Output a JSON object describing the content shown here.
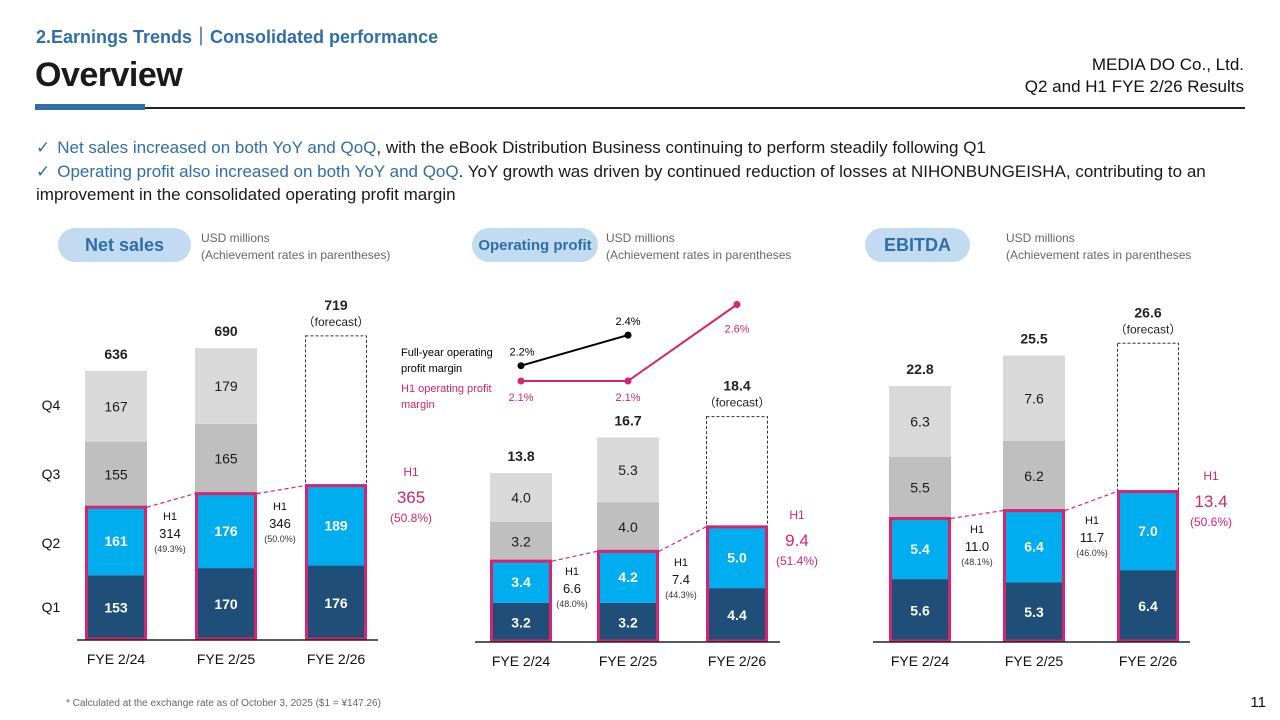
{
  "header": {
    "section": "2.Earnings Trends｜Consolidated performance",
    "title": "Overview",
    "company": "MEDIA DO Co., Ltd.",
    "report": "Q2 and H1 FYE 2/26 Results"
  },
  "bullets": [
    {
      "check": "✓",
      "highlight": "Net sales increased on both YoY and QoQ",
      "rest": ", with the eBook Distribution Business continuing to perform steadily following Q1"
    },
    {
      "check": "✓",
      "highlight": "Operating profit also increased on both YoY and QoQ",
      "rest": ". YoY growth was driven by continued reduction of losses at NIHONBUNGEISHA, contributing to an improvement in the consolidated operating profit margin"
    }
  ],
  "panels": {
    "net_sales": {
      "pill": "Net sales",
      "unit": "USD millions",
      "note": "(Achievement rates in parentheses)"
    },
    "operating_profit": {
      "pill": "Operating profit",
      "unit": "USD millions",
      "note": "(Achievement rates in parentheses"
    },
    "ebitda": {
      "pill": "EBITDA",
      "unit": "USD millions",
      "note": "(Achievement rates in parentheses"
    }
  },
  "colors": {
    "q1": "#1f4e79",
    "q2": "#00aeef",
    "q3": "#bfbfbf",
    "q4": "#d9d9d9",
    "h1_highlight": "#d6246e",
    "full_year_line": "#000000"
  },
  "footnote": "* Calculated at the exchange rate as of October 3, 2025 ($1 = ¥147.26)",
  "page_number": "11",
  "chart_data": [
    {
      "type": "bar",
      "stacked": true,
      "title": "Net sales",
      "unit": "USD millions",
      "categories": [
        "FYE 2/24",
        "FYE 2/25",
        "FYE 2/26"
      ],
      "quarter_labels": [
        "Q1",
        "Q2",
        "Q3",
        "Q4"
      ],
      "series": [
        {
          "name": "Q1",
          "values": [
            153,
            170,
            176
          ]
        },
        {
          "name": "Q2",
          "values": [
            161,
            176,
            189
          ]
        },
        {
          "name": "Q3",
          "values": [
            155,
            165,
            null
          ]
        },
        {
          "name": "Q4",
          "values": [
            167,
            179,
            null
          ]
        }
      ],
      "totals": [
        "636",
        "690",
        "719"
      ],
      "total_notes": [
        "",
        "",
        "（forecast）"
      ],
      "forecast": [
        false,
        false,
        true
      ],
      "h1": [
        {
          "label": "H1",
          "value": "314",
          "rate": "(49.3%)"
        },
        {
          "label": "H1",
          "value": "346",
          "rate": "(50.0%)"
        },
        {
          "label": "H1",
          "value": "365",
          "rate": "(50.8%)"
        }
      ],
      "ylim": [
        0,
        760
      ]
    },
    {
      "type": "bar",
      "stacked": true,
      "title": "Operating profit",
      "unit": "USD millions",
      "categories": [
        "FYE 2/24",
        "FYE 2/25",
        "FYE 2/26"
      ],
      "series": [
        {
          "name": "Q1",
          "values": [
            3.2,
            3.2,
            4.4
          ]
        },
        {
          "name": "Q2",
          "values": [
            3.4,
            4.2,
            5.0
          ]
        },
        {
          "name": "Q3",
          "values": [
            3.2,
            4.0,
            null
          ]
        },
        {
          "name": "Q4",
          "values": [
            4.0,
            5.3,
            null
          ]
        }
      ],
      "totals": [
        "13.8",
        "16.7",
        "18.4"
      ],
      "total_notes": [
        "",
        "",
        "（forecast）"
      ],
      "forecast": [
        false,
        false,
        true
      ],
      "h1": [
        {
          "label": "H1",
          "value": "6.6",
          "rate": "(48.0%)"
        },
        {
          "label": "H1",
          "value": "7.4",
          "rate": "(44.3%)"
        },
        {
          "label": "H1",
          "value": "9.4",
          "rate": "(51.4%)"
        }
      ],
      "margin_lines": [
        {
          "name": "Full-year operating profit margin",
          "name_lines": [
            "Full-year operating",
            "profit margin"
          ],
          "values": [
            2.2,
            2.4
          ],
          "labels": [
            "2.2%",
            "2.4%"
          ]
        },
        {
          "name": "H1 operating profit margin",
          "name_lines": [
            "H1 operating profit",
            "margin"
          ],
          "values": [
            2.1,
            2.1,
            2.6
          ],
          "labels": [
            "2.1%",
            "2.1%",
            "2.6%"
          ]
        }
      ],
      "ylim": [
        0,
        19
      ]
    },
    {
      "type": "bar",
      "stacked": true,
      "title": "EBITDA",
      "unit": "USD millions",
      "categories": [
        "FYE 2/24",
        "FYE 2/25",
        "FYE 2/26"
      ],
      "series": [
        {
          "name": "Q1",
          "values": [
            5.6,
            5.3,
            6.4
          ]
        },
        {
          "name": "Q2",
          "values": [
            5.4,
            6.4,
            7.0
          ]
        },
        {
          "name": "Q3",
          "values": [
            5.5,
            6.2,
            null
          ]
        },
        {
          "name": "Q4",
          "values": [
            6.3,
            7.6,
            null
          ]
        }
      ],
      "totals": [
        "22.8",
        "25.5",
        "26.6"
      ],
      "total_notes": [
        "",
        "",
        "（forecast）"
      ],
      "forecast": [
        false,
        false,
        true
      ],
      "h1": [
        {
          "label": "H1",
          "value": "11.0",
          "rate": "(48.1%)"
        },
        {
          "label": "H1",
          "value": "11.7",
          "rate": "(46.0%)"
        },
        {
          "label": "H1",
          "value": "13.4",
          "rate": "(50.6%)"
        }
      ],
      "ylim": [
        0,
        28
      ]
    }
  ]
}
